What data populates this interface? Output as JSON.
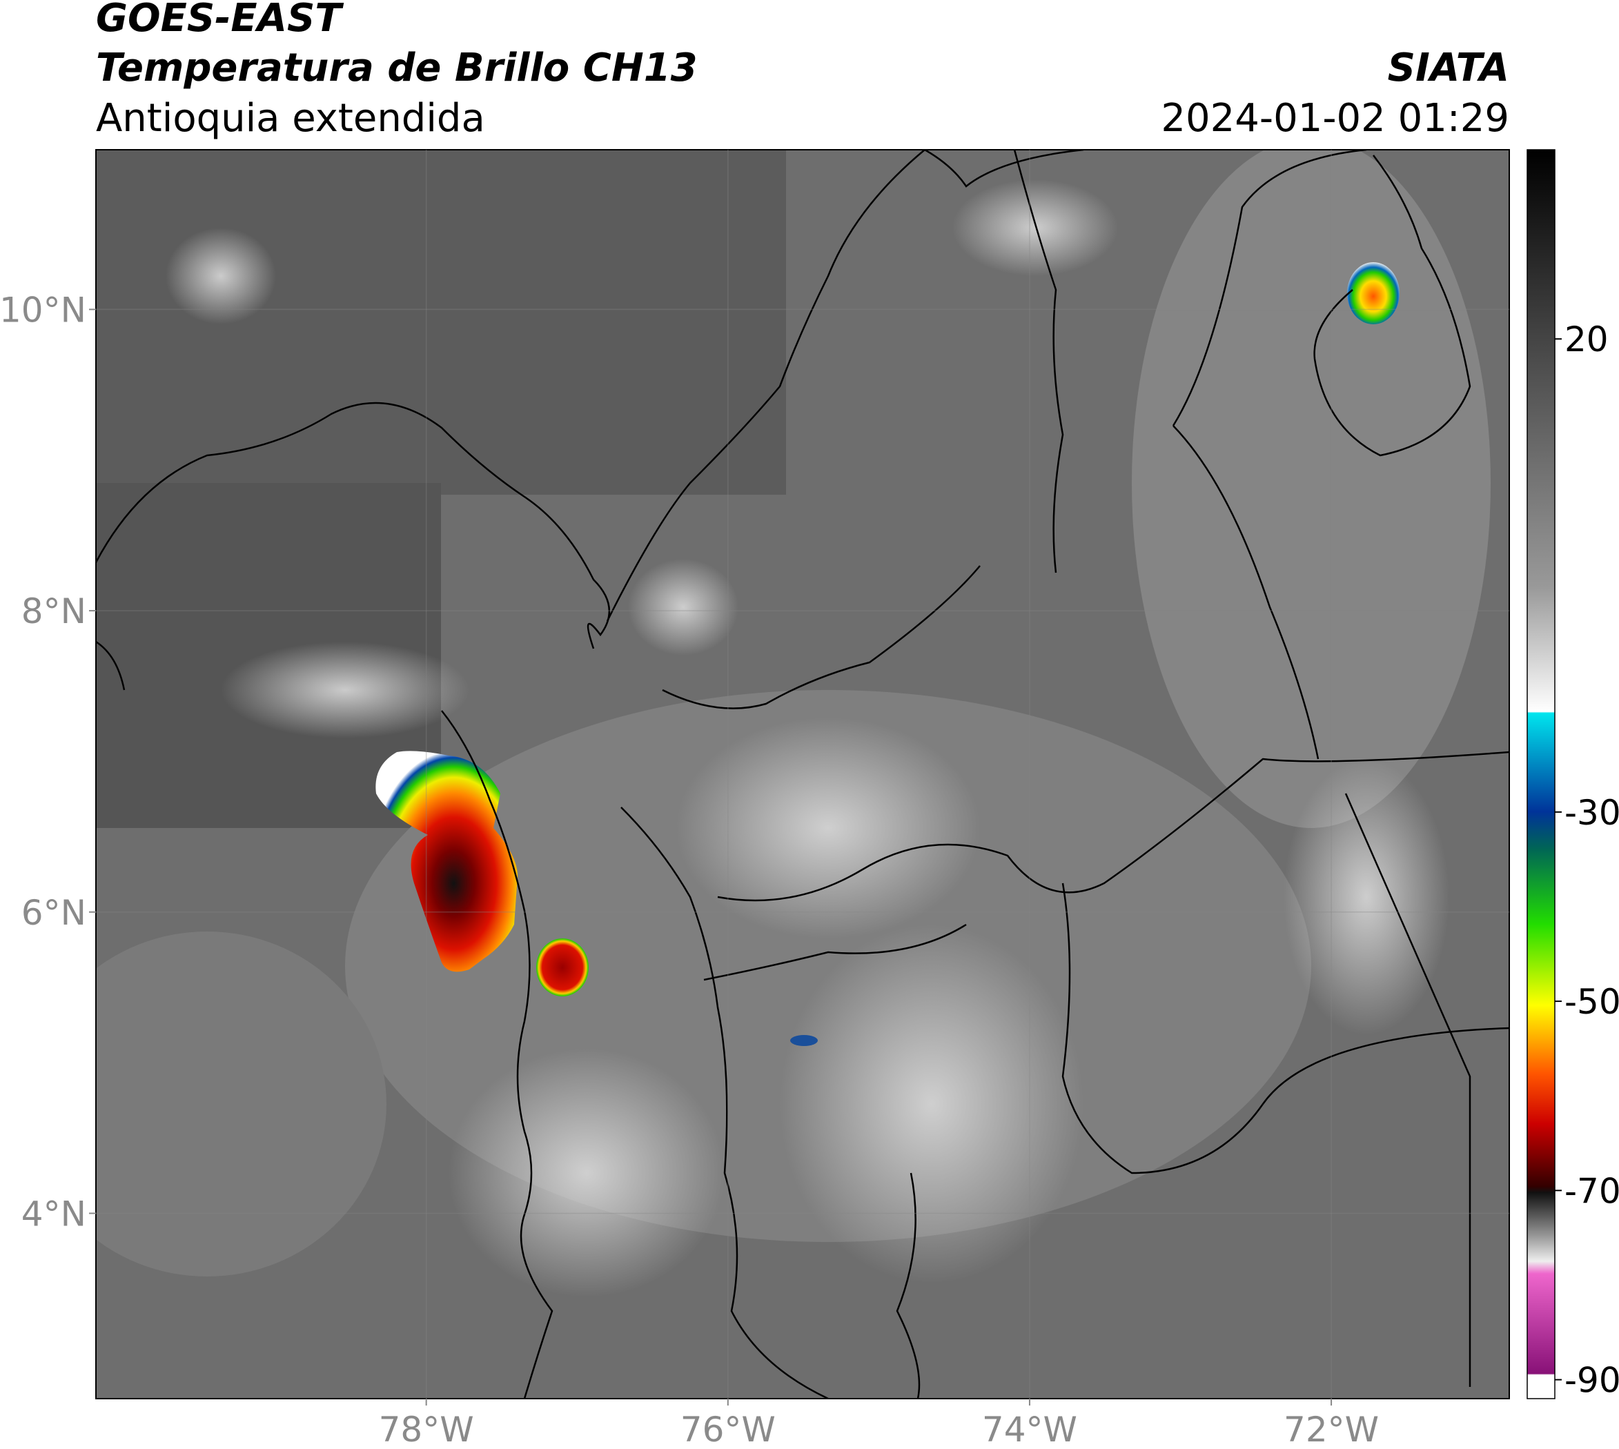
{
  "header": {
    "line1": "GOES-EAST",
    "line2": "Temperatura de Brillo CH13",
    "line3": "Antioquia extendida",
    "source": "SIATA",
    "timestamp": "2024-01-02 01:29"
  },
  "map": {
    "lon_range": [
      -80.19,
      -70.82
    ],
    "lat_range": [
      2.77,
      11.06
    ],
    "lon_ticks": [
      {
        "value": -78,
        "label": "78°W"
      },
      {
        "value": -76,
        "label": "76°W"
      },
      {
        "value": -74,
        "label": "74°W"
      },
      {
        "value": -72,
        "label": "72°W"
      }
    ],
    "lat_ticks": [
      {
        "value": 10,
        "label": "10°N"
      },
      {
        "value": 8,
        "label": "8°N"
      },
      {
        "value": 6,
        "label": "6°N"
      },
      {
        "value": 4,
        "label": "4°N"
      }
    ]
  },
  "colorbar": {
    "range": [
      -92,
      40
    ],
    "ticks": [
      20,
      -30,
      -50,
      -70,
      -90
    ]
  }
}
